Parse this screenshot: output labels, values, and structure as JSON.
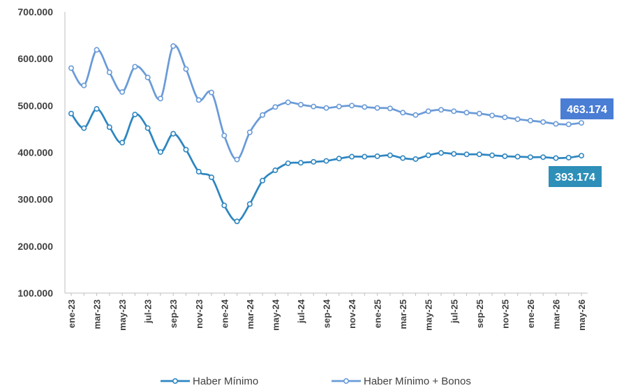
{
  "chart_data": {
    "type": "line",
    "title": "",
    "xlabel": "",
    "ylabel": "",
    "ylim": [
      100000,
      700000
    ],
    "y_ticks": [
      "100.000",
      "200.000",
      "300.000",
      "400.000",
      "500.000",
      "600.000",
      "700.000"
    ],
    "y_tick_values": [
      100000,
      200000,
      300000,
      400000,
      500000,
      600000,
      700000
    ],
    "x": [
      "ene-23",
      "feb-23",
      "mar-23",
      "abr-23",
      "may-23",
      "jun-23",
      "jul-23",
      "ago-23",
      "sep-23",
      "oct-23",
      "nov-23",
      "dic-23",
      "ene-24",
      "feb-24",
      "mar-24",
      "abr-24",
      "may-24",
      "jun-24",
      "jul-24",
      "ago-24",
      "sep-24",
      "oct-24",
      "nov-24",
      "dic-24",
      "ene-25",
      "feb-25",
      "mar-25",
      "abr-25",
      "may-25",
      "jun-25",
      "jul-25",
      "ago-25",
      "sep-25",
      "oct-25",
      "nov-25",
      "dic-25",
      "ene-26",
      "feb-26",
      "mar-26",
      "abr-26",
      "may-26"
    ],
    "x_tick_labels": [
      "ene-23",
      "mar-23",
      "may-23",
      "jul-23",
      "sep-23",
      "nov-23",
      "ene-24",
      "mar-24",
      "may-24",
      "jul-24",
      "sep-24",
      "nov-24",
      "ene-25",
      "mar-25",
      "may-25",
      "jul-25",
      "sep-25",
      "nov-25",
      "ene-26",
      "mar-26",
      "may-26"
    ],
    "grid": false,
    "legend_position": "bottom",
    "series": [
      {
        "name": "Haber Mínimo",
        "color": "#2E86C1",
        "values": [
          483000,
          452000,
          493000,
          454000,
          421000,
          481000,
          452000,
          401000,
          440000,
          406000,
          359000,
          347000,
          287000,
          253000,
          290000,
          340000,
          362000,
          377000,
          378000,
          380000,
          382000,
          387000,
          391000,
          391000,
          392000,
          394000,
          388000,
          386000,
          394000,
          399000,
          397000,
          396000,
          396000,
          394000,
          392000,
          391000,
          390000,
          390000,
          388000,
          389000,
          393174
        ]
      },
      {
        "name": "Haber Mínimo + Bonos",
        "color": "#6A9BD8",
        "values": [
          580000,
          543000,
          619000,
          571000,
          529000,
          583000,
          560000,
          515000,
          627000,
          578000,
          512000,
          528000,
          436000,
          385000,
          443000,
          480000,
          497000,
          507000,
          502000,
          498000,
          495000,
          498000,
          500000,
          497000,
          495000,
          494000,
          485000,
          480000,
          488000,
          491000,
          488000,
          485000,
          483000,
          479000,
          475000,
          471000,
          468000,
          465000,
          461000,
          460000,
          463174
        ]
      }
    ],
    "annotations": [
      {
        "series": 1,
        "text": "463.174",
        "bg": "#4A7DD4"
      },
      {
        "series": 0,
        "text": "393.174",
        "bg": "#2E8FB8"
      }
    ]
  }
}
